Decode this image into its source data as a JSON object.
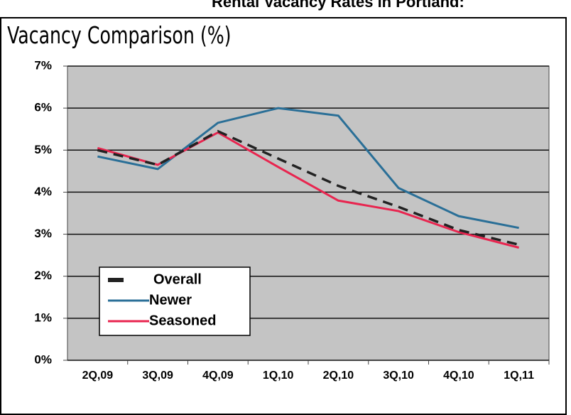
{
  "header": "Rental Vacancy Rates in Portland:",
  "chart_data": {
    "type": "line",
    "title": "Vacancy Comparison (%)",
    "categories": [
      "2Q,09",
      "3Q,09",
      "4Q,09",
      "1Q,10",
      "2Q,10",
      "3Q,10",
      "4Q,10",
      "1Q,11"
    ],
    "series": [
      {
        "name": "Overall",
        "color": "#222222",
        "dashed": true,
        "values": [
          5.0,
          4.65,
          5.45,
          4.8,
          4.15,
          3.65,
          3.1,
          2.75
        ]
      },
      {
        "name": "Newer",
        "color": "#2a6f97",
        "values": [
          4.85,
          4.55,
          5.65,
          6.0,
          5.82,
          4.1,
          3.43,
          3.15
        ]
      },
      {
        "name": "Seasoned",
        "color": "#e8254f",
        "values": [
          5.05,
          4.65,
          5.42,
          4.6,
          3.8,
          3.55,
          3.05,
          2.68
        ]
      }
    ],
    "ylim": [
      0,
      7
    ],
    "yticks": [
      {
        "value": 0,
        "label": "0%"
      },
      {
        "value": 1,
        "label": "1%"
      },
      {
        "value": 2,
        "label": "2%"
      },
      {
        "value": 3,
        "label": "3%"
      },
      {
        "value": 4,
        "label": "4%"
      },
      {
        "value": 5,
        "label": "5%"
      },
      {
        "value": 6,
        "label": "6%"
      },
      {
        "value": 7,
        "label": "7%"
      }
    ],
    "grid": true,
    "legend": "lower-left"
  }
}
